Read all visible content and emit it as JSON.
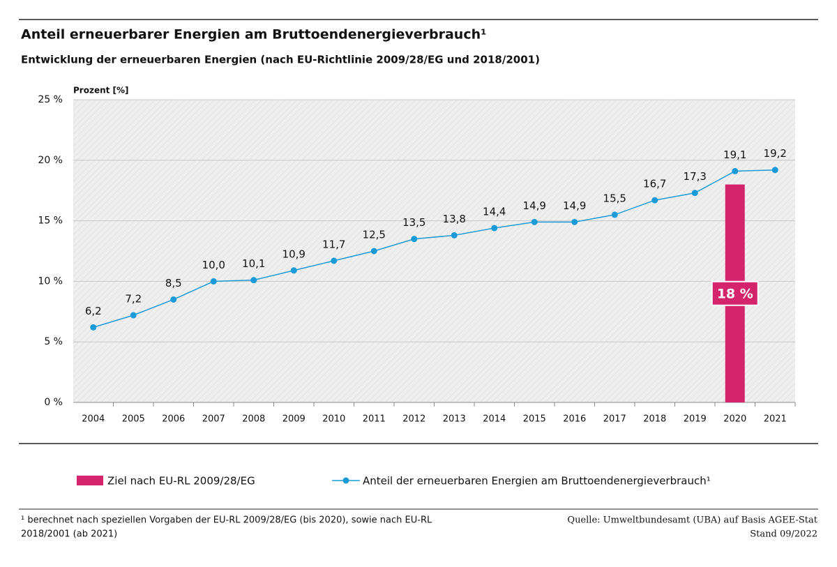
{
  "chart_data": {
    "type": "line",
    "title": "Anteil erneuerbarer Energien am Bruttoendenergieverbrauch¹",
    "subtitle": "Entwicklung der erneuerbaren Energien (nach EU-Richtlinie 2009/28/EG  und 2018/2001)",
    "y_label": "Prozent [%]",
    "categories": [
      "2004",
      "2005",
      "2006",
      "2007",
      "2008",
      "2009",
      "2010",
      "2011",
      "2012",
      "2013",
      "2014",
      "2015",
      "2016",
      "2017",
      "2018",
      "2019",
      "2020",
      "2021"
    ],
    "series": [
      {
        "name": "Ziel nach EU-RL 2009/28/EG",
        "type": "bar",
        "color": "#d3246c",
        "values": [
          null,
          null,
          null,
          null,
          null,
          null,
          null,
          null,
          null,
          null,
          null,
          null,
          null,
          null,
          null,
          null,
          18,
          null
        ],
        "value_labels": [
          null,
          null,
          null,
          null,
          null,
          null,
          null,
          null,
          null,
          null,
          null,
          null,
          null,
          null,
          null,
          null,
          "18 %",
          null
        ]
      },
      {
        "name": "Anteil der erneuerbaren Energien am Bruttoendenergieverbrauch¹",
        "type": "line",
        "color": "#1a9bd7",
        "values": [
          6.2,
          7.2,
          8.5,
          10.0,
          10.1,
          10.9,
          11.7,
          12.5,
          13.5,
          13.8,
          14.4,
          14.9,
          14.9,
          15.5,
          16.7,
          17.3,
          19.1,
          19.2
        ],
        "value_labels": [
          "6,2",
          "7,2",
          "8,5",
          "10,0",
          "10,1",
          "10,9",
          "11,7",
          "12,5",
          "13,5",
          "13,8",
          "14,4",
          "14,9",
          "14,9",
          "15,5",
          "16,7",
          "17,3",
          "19,1",
          "19,2"
        ]
      }
    ],
    "ylim": [
      0,
      25
    ],
    "yticks": [
      {
        "value": 0,
        "label": "0 %"
      },
      {
        "value": 5,
        "label": "5 %"
      },
      {
        "value": 10,
        "label": "10 %"
      },
      {
        "value": 15,
        "label": "15 %"
      },
      {
        "value": 20,
        "label": "20 %"
      },
      {
        "value": 25,
        "label": "25 %"
      }
    ],
    "grid": true,
    "footnote": [
      "¹ berechnet nach speziellen Vorgaben der EU-RL 2009/28/EG (bis 2020), sowie nach EU-RL",
      "2018/2001 (ab 2021)"
    ],
    "source": [
      "Quelle: Umweltbundesamt (UBA) auf Basis AGEE-Stat",
      "Stand 09/2022"
    ]
  }
}
